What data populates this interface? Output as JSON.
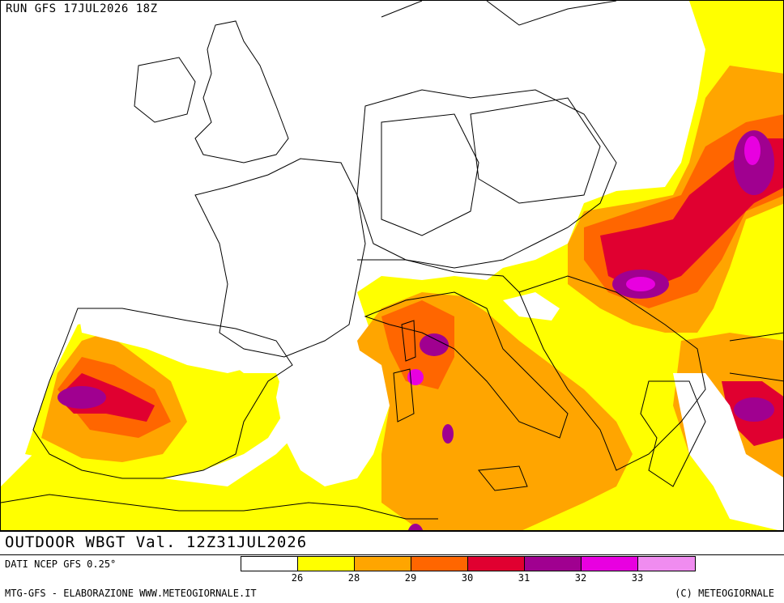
{
  "header": {
    "run_label": "RUN GFS 17JUL2026 18Z"
  },
  "title": {
    "text": "OUTDOOR WBGT Val. 12Z31JUL2026"
  },
  "source": {
    "text": "DATI NCEP GFS 0.25°"
  },
  "footer": {
    "left": "MTG-GFS - ELABORAZIONE WWW.METEOGIORNALE.IT",
    "right": "(C) METEOGIORNALE"
  },
  "legend": {
    "colors": [
      "#ffffff",
      "#ffff00",
      "#ffa500",
      "#ff6600",
      "#e00030",
      "#a00090",
      "#e800e0",
      "#f08cf0"
    ],
    "ticks": [
      "26",
      "28",
      "29",
      "30",
      "31",
      "32",
      "33"
    ]
  },
  "map": {
    "projection": "Europe / Mediterranean",
    "variable": "WBGT"
  }
}
